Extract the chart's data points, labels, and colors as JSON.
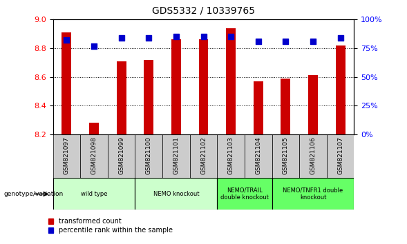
{
  "title": "GDS5332 / 10339765",
  "samples": [
    "GSM821097",
    "GSM821098",
    "GSM821099",
    "GSM821100",
    "GSM821101",
    "GSM821102",
    "GSM821103",
    "GSM821104",
    "GSM821105",
    "GSM821106",
    "GSM821107"
  ],
  "transformed_counts": [
    8.91,
    8.28,
    8.71,
    8.72,
    8.86,
    8.86,
    8.94,
    8.57,
    8.59,
    8.61,
    8.82
  ],
  "percentile_ranks": [
    82,
    77,
    84,
    84,
    85,
    85,
    85,
    81,
    81,
    81,
    84
  ],
  "ylim_left": [
    8.2,
    9.0
  ],
  "ylim_right": [
    0,
    100
  ],
  "yticks_left": [
    8.2,
    8.4,
    8.6,
    8.8,
    9.0
  ],
  "yticks_right": [
    0,
    25,
    50,
    75,
    100
  ],
  "groups": [
    {
      "label": "wild type",
      "start": 0,
      "end": 2,
      "color": "#ccffcc"
    },
    {
      "label": "NEMO knockout",
      "start": 3,
      "end": 5,
      "color": "#ccffcc"
    },
    {
      "label": "NEMO/TRAIL\ndouble knockout",
      "start": 6,
      "end": 7,
      "color": "#66ff66"
    },
    {
      "label": "NEMO/TNFR1 double\nknockout",
      "start": 8,
      "end": 10,
      "color": "#66ff66"
    }
  ],
  "bar_color": "#cc0000",
  "dot_color": "#0000cc",
  "bar_bottom": 8.2,
  "bar_width": 0.35,
  "dot_size": 35,
  "label_color_left": "red",
  "label_color_right": "blue",
  "tick_label_color_x": "#444444",
  "xlabel_bg": "#cccccc"
}
